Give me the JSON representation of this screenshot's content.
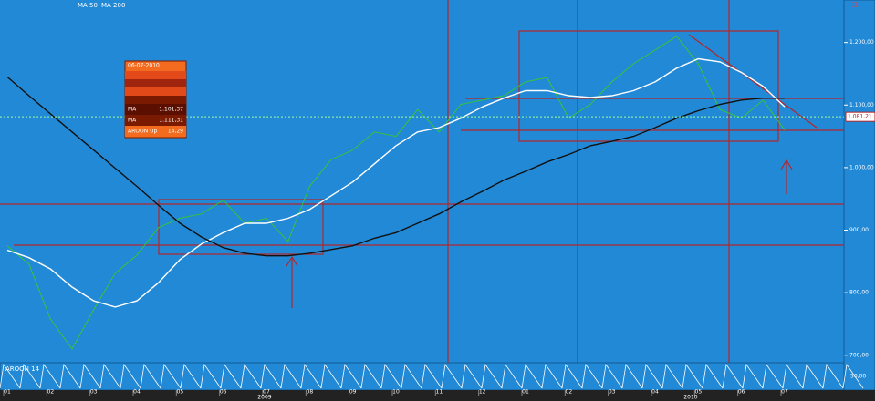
{
  "chart_data": {
    "type": "line",
    "categories": [
      "01",
      null,
      "02",
      null,
      "03",
      null,
      "04",
      null,
      "05",
      null,
      "06",
      null,
      "07",
      null,
      "08",
      null,
      "09",
      null,
      "10",
      null,
      "11",
      null,
      "12",
      null,
      "01",
      null,
      "02",
      null,
      "03",
      null,
      "04",
      null,
      "05",
      null,
      "06",
      null,
      "07"
    ],
    "series": [
      {
        "color": "#35c43a",
        "values": [
          875,
          846,
          758,
          710,
          773,
          831,
          860,
          904,
          919,
          926,
          948,
          911,
          919,
          882,
          970,
          1013,
          1028,
          1057,
          1050,
          1093,
          1057,
          1101,
          1108,
          1115,
          1137,
          1144,
          1079,
          1101,
          1137,
          1166,
          1188,
          1210,
          1166,
          1093,
          1079,
          1108,
          1060
        ]
      },
      {
        "name": "MA 50",
        "color": "#ffffff",
        "values": [
          868,
          856,
          838,
          809,
          787,
          777,
          787,
          816,
          853,
          878,
          896,
          911,
          911,
          919,
          933,
          955,
          977,
          1006,
          1035,
          1057,
          1064,
          1079,
          1097,
          1111,
          1123,
          1123,
          1115,
          1112,
          1115,
          1123,
          1137,
          1159,
          1174,
          1169,
          1152,
          1130,
          1097
        ]
      },
      {
        "name": "MA 200",
        "color": "#111111",
        "values": [
          1145,
          1115,
          1086,
          1057,
          1028,
          999,
          970,
          940,
          911,
          889,
          872,
          863,
          859,
          859,
          863,
          869,
          875,
          887,
          896,
          911,
          926,
          945,
          962,
          980,
          994,
          1009,
          1021,
          1035,
          1042,
          1050,
          1064,
          1079,
          1091,
          1101,
          1108,
          1111,
          1111
        ]
      }
    ],
    "ylim": [
      688,
      1268
    ],
    "yticks": [
      {
        "value": 700,
        "label": "700,00"
      },
      {
        "value": 800,
        "label": "800,00"
      },
      {
        "value": 900,
        "label": "900,00"
      },
      {
        "value": 1000,
        "label": "1.000,00"
      },
      {
        "value": 1100,
        "label": "1.100,00"
      },
      {
        "value": 1200,
        "label": "1.200,00"
      }
    ],
    "last_price": {
      "value": 1081.21,
      "label": "1.081,21"
    },
    "years": [
      "2009",
      "2010"
    ],
    "info_box": {
      "date": "06-07-2010",
      "rows": [
        [
          "MA",
          "1.101,37"
        ],
        [
          "MA",
          "1.111,31"
        ],
        [
          "AROON Up",
          "14,29"
        ]
      ]
    },
    "aroon": {
      "label": "AROON 14",
      "tick": {
        "value": 50,
        "label": "50,00"
      }
    }
  }
}
